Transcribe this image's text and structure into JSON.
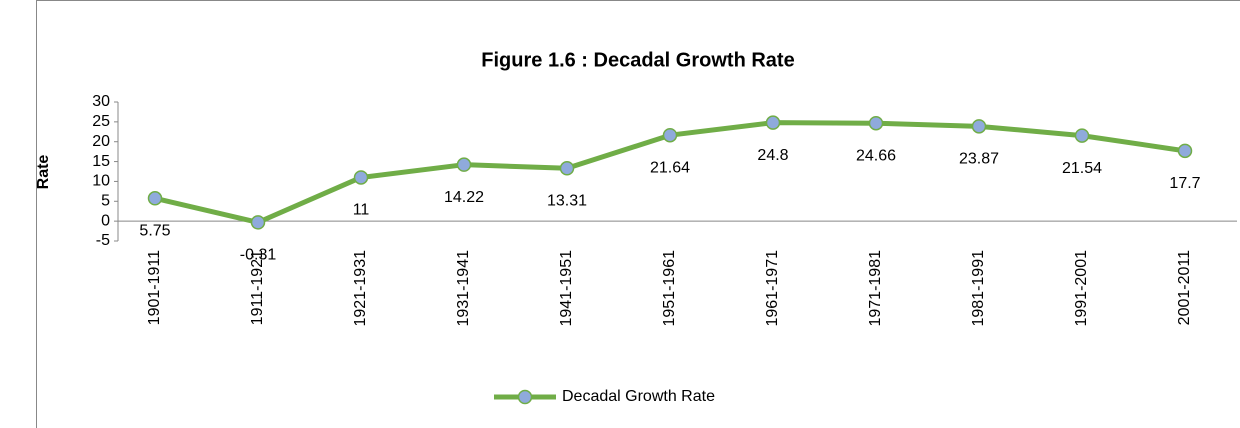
{
  "chart_data": {
    "type": "line",
    "title": "Figure 1.6 :  Decadal Growth Rate",
    "y_label": "Rate",
    "categories": [
      "1901-1911",
      "1911-1921",
      "1921-1931",
      "1931-1941",
      "1941-1951",
      "1951-1961",
      "1961-1971",
      "1971-1981",
      "1981-1991",
      "1991-2001",
      "2001-2011"
    ],
    "series": [
      {
        "name": "Decadal Growth Rate",
        "color": "#70ad47",
        "marker_color": "#8faadc",
        "values": [
          5.75,
          -0.31,
          11,
          14.22,
          13.31,
          21.64,
          24.8,
          24.66,
          23.87,
          21.54,
          17.7
        ]
      }
    ],
    "ylim": [
      -5,
      30
    ],
    "yticks": [
      -5,
      0,
      5,
      10,
      15,
      20,
      25,
      30
    ],
    "grid": false,
    "legend": "bottom",
    "data_labels": true
  }
}
